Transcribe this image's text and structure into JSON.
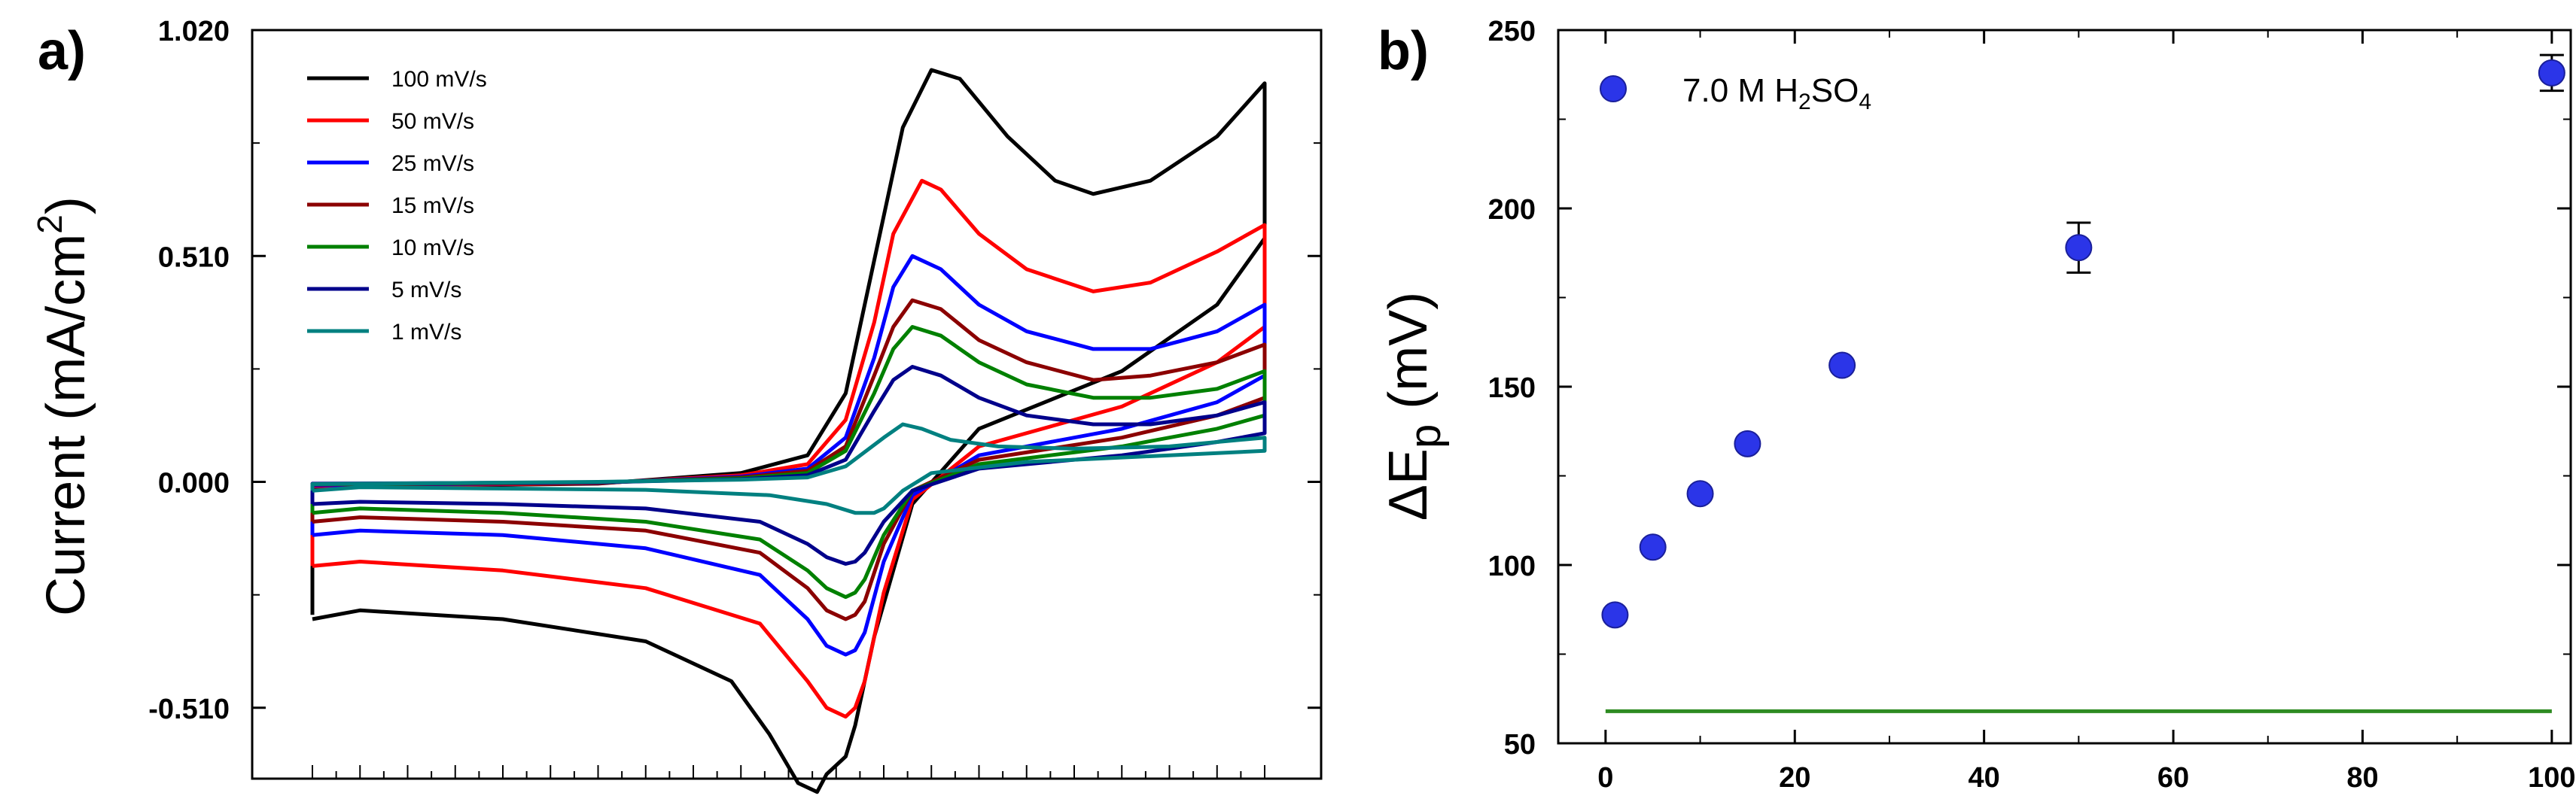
{
  "chart_data": [
    {
      "type": "line",
      "panel_label": "a)",
      "ylabel": "Current (mA/cm",
      "ylabel_sup": "2",
      "ylabel_close": ")",
      "xlabel": "",
      "xlim": [
        0,
        100
      ],
      "ylim": [
        -0.67,
        1.02
      ],
      "yticks": [
        "1.020",
        "0.510",
        "0.000",
        "-0.510"
      ],
      "ytick_values": [
        1.02,
        0.51,
        0.0,
        -0.51
      ],
      "grid": false,
      "legend_position": "top-left",
      "series": [
        {
          "name": "100 mV/s",
          "color": "#000000",
          "forward": [
            [
              0,
              -0.3
            ],
            [
              0,
              -0.012
            ],
            [
              30,
              -0.004
            ],
            [
              45,
              0.02
            ],
            [
              52,
              0.06
            ],
            [
              56,
              0.2
            ],
            [
              59,
              0.5
            ],
            [
              62,
              0.8
            ],
            [
              65,
              0.93
            ],
            [
              68,
              0.91
            ],
            [
              73,
              0.78
            ],
            [
              78,
              0.68
            ],
            [
              82,
              0.65
            ],
            [
              88,
              0.68
            ],
            [
              95,
              0.78
            ],
            [
              100,
              0.9
            ]
          ],
          "reverse": [
            [
              100,
              0.9
            ],
            [
              100,
              0.55
            ],
            [
              95,
              0.4
            ],
            [
              85,
              0.25
            ],
            [
              70,
              0.12
            ],
            [
              63,
              -0.05
            ],
            [
              59,
              -0.35
            ],
            [
              57,
              -0.55
            ],
            [
              56,
              -0.62
            ],
            [
              54,
              -0.66
            ],
            [
              53,
              -0.7
            ],
            [
              51,
              -0.68
            ],
            [
              48,
              -0.57
            ],
            [
              44,
              -0.45
            ],
            [
              35,
              -0.36
            ],
            [
              20,
              -0.31
            ],
            [
              5,
              -0.29
            ],
            [
              0,
              -0.31
            ]
          ]
        },
        {
          "name": "50 mV/s",
          "color": "#ff0000",
          "forward": [
            [
              0,
              -0.19
            ],
            [
              0,
              -0.01
            ],
            [
              30,
              -0.003
            ],
            [
              45,
              0.015
            ],
            [
              52,
              0.04
            ],
            [
              56,
              0.14
            ],
            [
              59,
              0.36
            ],
            [
              61,
              0.56
            ],
            [
              64,
              0.68
            ],
            [
              66,
              0.66
            ],
            [
              70,
              0.56
            ],
            [
              75,
              0.48
            ],
            [
              82,
              0.43
            ],
            [
              88,
              0.45
            ],
            [
              95,
              0.52
            ],
            [
              100,
              0.58
            ]
          ],
          "reverse": [
            [
              100,
              0.58
            ],
            [
              100,
              0.35
            ],
            [
              95,
              0.27
            ],
            [
              85,
              0.17
            ],
            [
              70,
              0.08
            ],
            [
              63,
              -0.04
            ],
            [
              60,
              -0.25
            ],
            [
              58,
              -0.45
            ],
            [
              57,
              -0.51
            ],
            [
              56,
              -0.53
            ],
            [
              54,
              -0.51
            ],
            [
              52,
              -0.45
            ],
            [
              47,
              -0.32
            ],
            [
              35,
              -0.24
            ],
            [
              20,
              -0.2
            ],
            [
              5,
              -0.18
            ],
            [
              0,
              -0.19
            ]
          ]
        },
        {
          "name": "25 mV/s",
          "color": "#0000ff",
          "forward": [
            [
              0,
              -0.12
            ],
            [
              0,
              -0.008
            ],
            [
              30,
              -0.002
            ],
            [
              45,
              0.012
            ],
            [
              52,
              0.03
            ],
            [
              56,
              0.1
            ],
            [
              59,
              0.28
            ],
            [
              61,
              0.44
            ],
            [
              63,
              0.51
            ],
            [
              66,
              0.48
            ],
            [
              70,
              0.4
            ],
            [
              75,
              0.34
            ],
            [
              82,
              0.3
            ],
            [
              88,
              0.3
            ],
            [
              95,
              0.34
            ],
            [
              100,
              0.4
            ]
          ],
          "reverse": [
            [
              100,
              0.4
            ],
            [
              100,
              0.24
            ],
            [
              95,
              0.18
            ],
            [
              85,
              0.12
            ],
            [
              70,
              0.06
            ],
            [
              63,
              -0.03
            ],
            [
              60,
              -0.18
            ],
            [
              58,
              -0.34
            ],
            [
              57,
              -0.38
            ],
            [
              56,
              -0.39
            ],
            [
              54,
              -0.37
            ],
            [
              52,
              -0.31
            ],
            [
              47,
              -0.21
            ],
            [
              35,
              -0.15
            ],
            [
              20,
              -0.12
            ],
            [
              5,
              -0.11
            ],
            [
              0,
              -0.12
            ]
          ]
        },
        {
          "name": "15 mV/s",
          "color": "#8b0000",
          "forward": [
            [
              0,
              -0.09
            ],
            [
              0,
              -0.006
            ],
            [
              30,
              -0.002
            ],
            [
              45,
              0.01
            ],
            [
              52,
              0.025
            ],
            [
              56,
              0.08
            ],
            [
              59,
              0.24
            ],
            [
              61,
              0.35
            ],
            [
              63,
              0.41
            ],
            [
              66,
              0.39
            ],
            [
              70,
              0.32
            ],
            [
              75,
              0.27
            ],
            [
              82,
              0.23
            ],
            [
              88,
              0.24
            ],
            [
              95,
              0.27
            ],
            [
              100,
              0.31
            ]
          ],
          "reverse": [
            [
              100,
              0.31
            ],
            [
              100,
              0.19
            ],
            [
              95,
              0.15
            ],
            [
              85,
              0.1
            ],
            [
              70,
              0.05
            ],
            [
              63,
              -0.02
            ],
            [
              60,
              -0.14
            ],
            [
              58,
              -0.27
            ],
            [
              57,
              -0.3
            ],
            [
              56,
              -0.31
            ],
            [
              54,
              -0.29
            ],
            [
              52,
              -0.24
            ],
            [
              47,
              -0.16
            ],
            [
              35,
              -0.11
            ],
            [
              20,
              -0.09
            ],
            [
              5,
              -0.08
            ],
            [
              0,
              -0.09
            ]
          ]
        },
        {
          "name": "10 mV/s",
          "color": "#008000",
          "forward": [
            [
              0,
              -0.07
            ],
            [
              0,
              -0.005
            ],
            [
              30,
              -0.001
            ],
            [
              45,
              0.008
            ],
            [
              52,
              0.02
            ],
            [
              56,
              0.07
            ],
            [
              59,
              0.2
            ],
            [
              61,
              0.3
            ],
            [
              63,
              0.35
            ],
            [
              66,
              0.33
            ],
            [
              70,
              0.27
            ],
            [
              75,
              0.22
            ],
            [
              82,
              0.19
            ],
            [
              88,
              0.19
            ],
            [
              95,
              0.21
            ],
            [
              100,
              0.25
            ]
          ],
          "reverse": [
            [
              100,
              0.25
            ],
            [
              100,
              0.15
            ],
            [
              95,
              0.12
            ],
            [
              85,
              0.08
            ],
            [
              70,
              0.04
            ],
            [
              63,
              -0.02
            ],
            [
              60,
              -0.12
            ],
            [
              58,
              -0.22
            ],
            [
              57,
              -0.25
            ],
            [
              56,
              -0.26
            ],
            [
              54,
              -0.24
            ],
            [
              52,
              -0.2
            ],
            [
              47,
              -0.13
            ],
            [
              35,
              -0.09
            ],
            [
              20,
              -0.07
            ],
            [
              5,
              -0.06
            ],
            [
              0,
              -0.07
            ]
          ]
        },
        {
          "name": "5 mV/s",
          "color": "#00008b",
          "forward": [
            [
              0,
              -0.05
            ],
            [
              0,
              -0.004
            ],
            [
              30,
              -0.001
            ],
            [
              45,
              0.006
            ],
            [
              52,
              0.015
            ],
            [
              56,
              0.05
            ],
            [
              59,
              0.16
            ],
            [
              61,
              0.23
            ],
            [
              63,
              0.26
            ],
            [
              66,
              0.24
            ],
            [
              70,
              0.19
            ],
            [
              75,
              0.15
            ],
            [
              82,
              0.13
            ],
            [
              88,
              0.13
            ],
            [
              95,
              0.15
            ],
            [
              100,
              0.18
            ]
          ],
          "reverse": [
            [
              100,
              0.18
            ],
            [
              100,
              0.11
            ],
            [
              95,
              0.09
            ],
            [
              85,
              0.06
            ],
            [
              70,
              0.03
            ],
            [
              63,
              -0.02
            ],
            [
              60,
              -0.09
            ],
            [
              58,
              -0.16
            ],
            [
              57,
              -0.18
            ],
            [
              56,
              -0.185
            ],
            [
              54,
              -0.17
            ],
            [
              52,
              -0.14
            ],
            [
              47,
              -0.09
            ],
            [
              35,
              -0.06
            ],
            [
              20,
              -0.05
            ],
            [
              5,
              -0.045
            ],
            [
              0,
              -0.05
            ]
          ]
        },
        {
          "name": "1 mV/s",
          "color": "#008080",
          "forward": [
            [
              0,
              -0.02
            ],
            [
              0,
              -0.005
            ],
            [
              30,
              0.0
            ],
            [
              45,
              0.005
            ],
            [
              52,
              0.01
            ],
            [
              56,
              0.035
            ],
            [
              60,
              0.1
            ],
            [
              62,
              0.13
            ],
            [
              64,
              0.12
            ],
            [
              67,
              0.095
            ],
            [
              72,
              0.08
            ],
            [
              80,
              0.075
            ],
            [
              90,
              0.08
            ],
            [
              100,
              0.1
            ]
          ],
          "reverse": [
            [
              100,
              0.1
            ],
            [
              100,
              0.07
            ],
            [
              90,
              0.06
            ],
            [
              75,
              0.045
            ],
            [
              65,
              0.02
            ],
            [
              62,
              -0.02
            ],
            [
              60,
              -0.06
            ],
            [
              59,
              -0.07
            ],
            [
              57,
              -0.07
            ],
            [
              54,
              -0.05
            ],
            [
              48,
              -0.03
            ],
            [
              35,
              -0.018
            ],
            [
              20,
              -0.015
            ],
            [
              5,
              -0.012
            ],
            [
              0,
              -0.02
            ]
          ]
        }
      ]
    },
    {
      "type": "scatter",
      "panel_label": "b)",
      "xlabel": "",
      "ylabel": "ΔE",
      "ylabel_sub": "p",
      "ylabel_units": " (mV)",
      "xlim": [
        -5,
        102
      ],
      "ylim": [
        50,
        250
      ],
      "xticks": [
        "0",
        "20",
        "40",
        "60",
        "80",
        "100"
      ],
      "xtick_values": [
        0,
        20,
        40,
        60,
        80,
        100
      ],
      "yticks": [
        "50",
        "100",
        "150",
        "200",
        "250"
      ],
      "ytick_values": [
        50,
        100,
        150,
        200,
        250
      ],
      "grid": false,
      "legend_position": "top-left",
      "legend": {
        "prefix": "7.0 M H",
        "sub1": "2",
        "mid": "SO",
        "sub2": "4"
      },
      "marker_color": "#2b35e8",
      "points": [
        {
          "x": 1,
          "y": 86,
          "err": 1
        },
        {
          "x": 5,
          "y": 105,
          "err": 1
        },
        {
          "x": 10,
          "y": 120,
          "err": 1
        },
        {
          "x": 15,
          "y": 134,
          "err": 1
        },
        {
          "x": 25,
          "y": 156,
          "err": 1
        },
        {
          "x": 50,
          "y": 189,
          "err": 7
        },
        {
          "x": 100,
          "y": 238,
          "err": 5
        }
      ],
      "reference_line": {
        "y": 59,
        "x": [
          0,
          100
        ],
        "color": "#2e8b22"
      }
    }
  ]
}
